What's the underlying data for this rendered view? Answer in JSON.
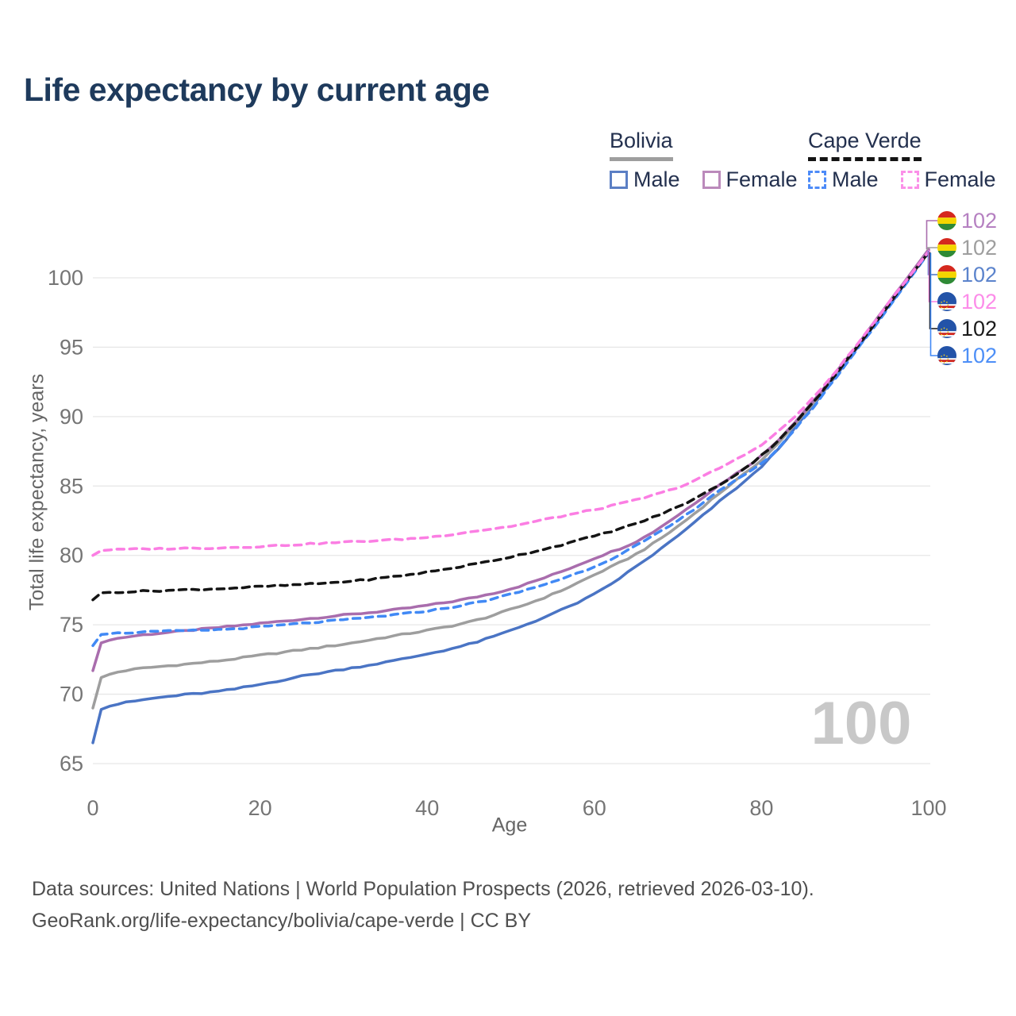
{
  "title": "Life expectancy by current age",
  "legend": {
    "groups": [
      {
        "country": "Bolivia",
        "line_style": "solid",
        "sample_color": "#9e9e9e",
        "items": [
          {
            "label": "Male",
            "color": "#5b7fc4",
            "dashed": false
          },
          {
            "label": "Female",
            "color": "#bb8abb",
            "dashed": false
          }
        ]
      },
      {
        "country": "Cape Verde",
        "line_style": "dashed",
        "sample_color": "#141414",
        "items": [
          {
            "label": "Male",
            "color": "#4d8bf8",
            "dashed": true
          },
          {
            "label": "Female",
            "color": "#fb90e8",
            "dashed": true
          }
        ]
      }
    ]
  },
  "watermark": "100",
  "footer": {
    "line1": "Data sources: United Nations | World Population Prospects (2026, retrieved 2026-03-10).",
    "line2": "GeoRank.org/life-expectancy/bolivia/cape-verde | CC BY"
  },
  "chart_data": {
    "type": "line",
    "title": "Life expectancy by current age",
    "xlabel": "Age",
    "ylabel": "Total life expectancy, years",
    "xlim": [
      0,
      100
    ],
    "ylim": [
      65,
      103
    ],
    "xticks": [
      0,
      20,
      40,
      60,
      80,
      100
    ],
    "yticks": [
      65,
      70,
      75,
      80,
      85,
      90,
      95,
      100
    ],
    "grid": true,
    "legend_position": "top-right",
    "x": [
      0,
      1,
      5,
      10,
      15,
      20,
      25,
      30,
      35,
      40,
      45,
      50,
      55,
      60,
      65,
      70,
      75,
      80,
      85,
      90,
      95,
      100
    ],
    "series": [
      {
        "name": "Bolivia — Female",
        "country": "Bolivia",
        "sex": "Female",
        "color": "#a96dad",
        "dash": false,
        "flag": "bolivia",
        "end_label": "102",
        "end_label_color": "#b580c1",
        "values": [
          71.7,
          73.7,
          74.2,
          74.5,
          74.8,
          75.1,
          75.4,
          75.7,
          76.0,
          76.4,
          76.9,
          77.6,
          78.6,
          79.8,
          81.0,
          82.9,
          85.1,
          87.2,
          90.3,
          94.0,
          98.0,
          102.05
        ]
      },
      {
        "name": "Bolivia",
        "country": "Bolivia",
        "sex": "All",
        "color": "#9e9e9e",
        "dash": false,
        "flag": "bolivia",
        "end_label": "102",
        "end_label_color": "#9e9e9e",
        "values": [
          69.0,
          71.2,
          71.8,
          72.1,
          72.4,
          72.8,
          73.2,
          73.6,
          74.1,
          74.6,
          75.2,
          76.1,
          77.2,
          78.6,
          80.1,
          82.1,
          84.5,
          86.9,
          90.1,
          93.9,
          97.9,
          102.0
        ]
      },
      {
        "name": "Bolivia — Male",
        "country": "Bolivia",
        "sex": "Male",
        "color": "#4a74c4",
        "dash": false,
        "flag": "bolivia",
        "end_label": "102",
        "end_label_color": "#5b83cc",
        "values": [
          66.5,
          68.9,
          69.5,
          69.9,
          70.2,
          70.7,
          71.3,
          71.8,
          72.3,
          72.9,
          73.6,
          74.6,
          75.8,
          77.2,
          79.2,
          81.4,
          83.9,
          86.4,
          89.9,
          93.8,
          97.8,
          101.95
        ]
      },
      {
        "name": "Cape Verde — Female",
        "country": "Cape Verde",
        "sex": "Female",
        "color": "#fb7ee3",
        "dash": true,
        "flag": "cape-verde",
        "end_label": "102",
        "end_label_color": "#fc8ce9",
        "values": [
          80.0,
          80.35,
          80.45,
          80.5,
          80.55,
          80.65,
          80.8,
          80.95,
          81.1,
          81.3,
          81.7,
          82.1,
          82.7,
          83.3,
          84.0,
          84.9,
          86.3,
          88.0,
          90.6,
          94.1,
          98.0,
          101.9
        ]
      },
      {
        "name": "Cape Verde",
        "country": "Cape Verde",
        "sex": "All",
        "color": "#141414",
        "dash": true,
        "flag": "cape-verde",
        "end_label": "102",
        "end_label_color": "#1a1a1a",
        "values": [
          76.8,
          77.3,
          77.4,
          77.5,
          77.6,
          77.75,
          77.9,
          78.1,
          78.4,
          78.8,
          79.3,
          79.9,
          80.6,
          81.4,
          82.3,
          83.5,
          85.1,
          87.2,
          90.2,
          93.9,
          97.9,
          101.85
        ]
      },
      {
        "name": "Cape Verde — Male",
        "country": "Cape Verde",
        "sex": "Male",
        "color": "#4189f5",
        "dash": true,
        "flag": "cape-verde",
        "end_label": "102",
        "end_label_color": "#4d8ff7",
        "values": [
          73.5,
          74.3,
          74.45,
          74.55,
          74.65,
          74.85,
          75.1,
          75.35,
          75.65,
          76.0,
          76.5,
          77.2,
          78.1,
          79.2,
          80.7,
          82.5,
          84.7,
          86.6,
          89.8,
          93.7,
          97.7,
          101.8
        ]
      }
    ]
  }
}
